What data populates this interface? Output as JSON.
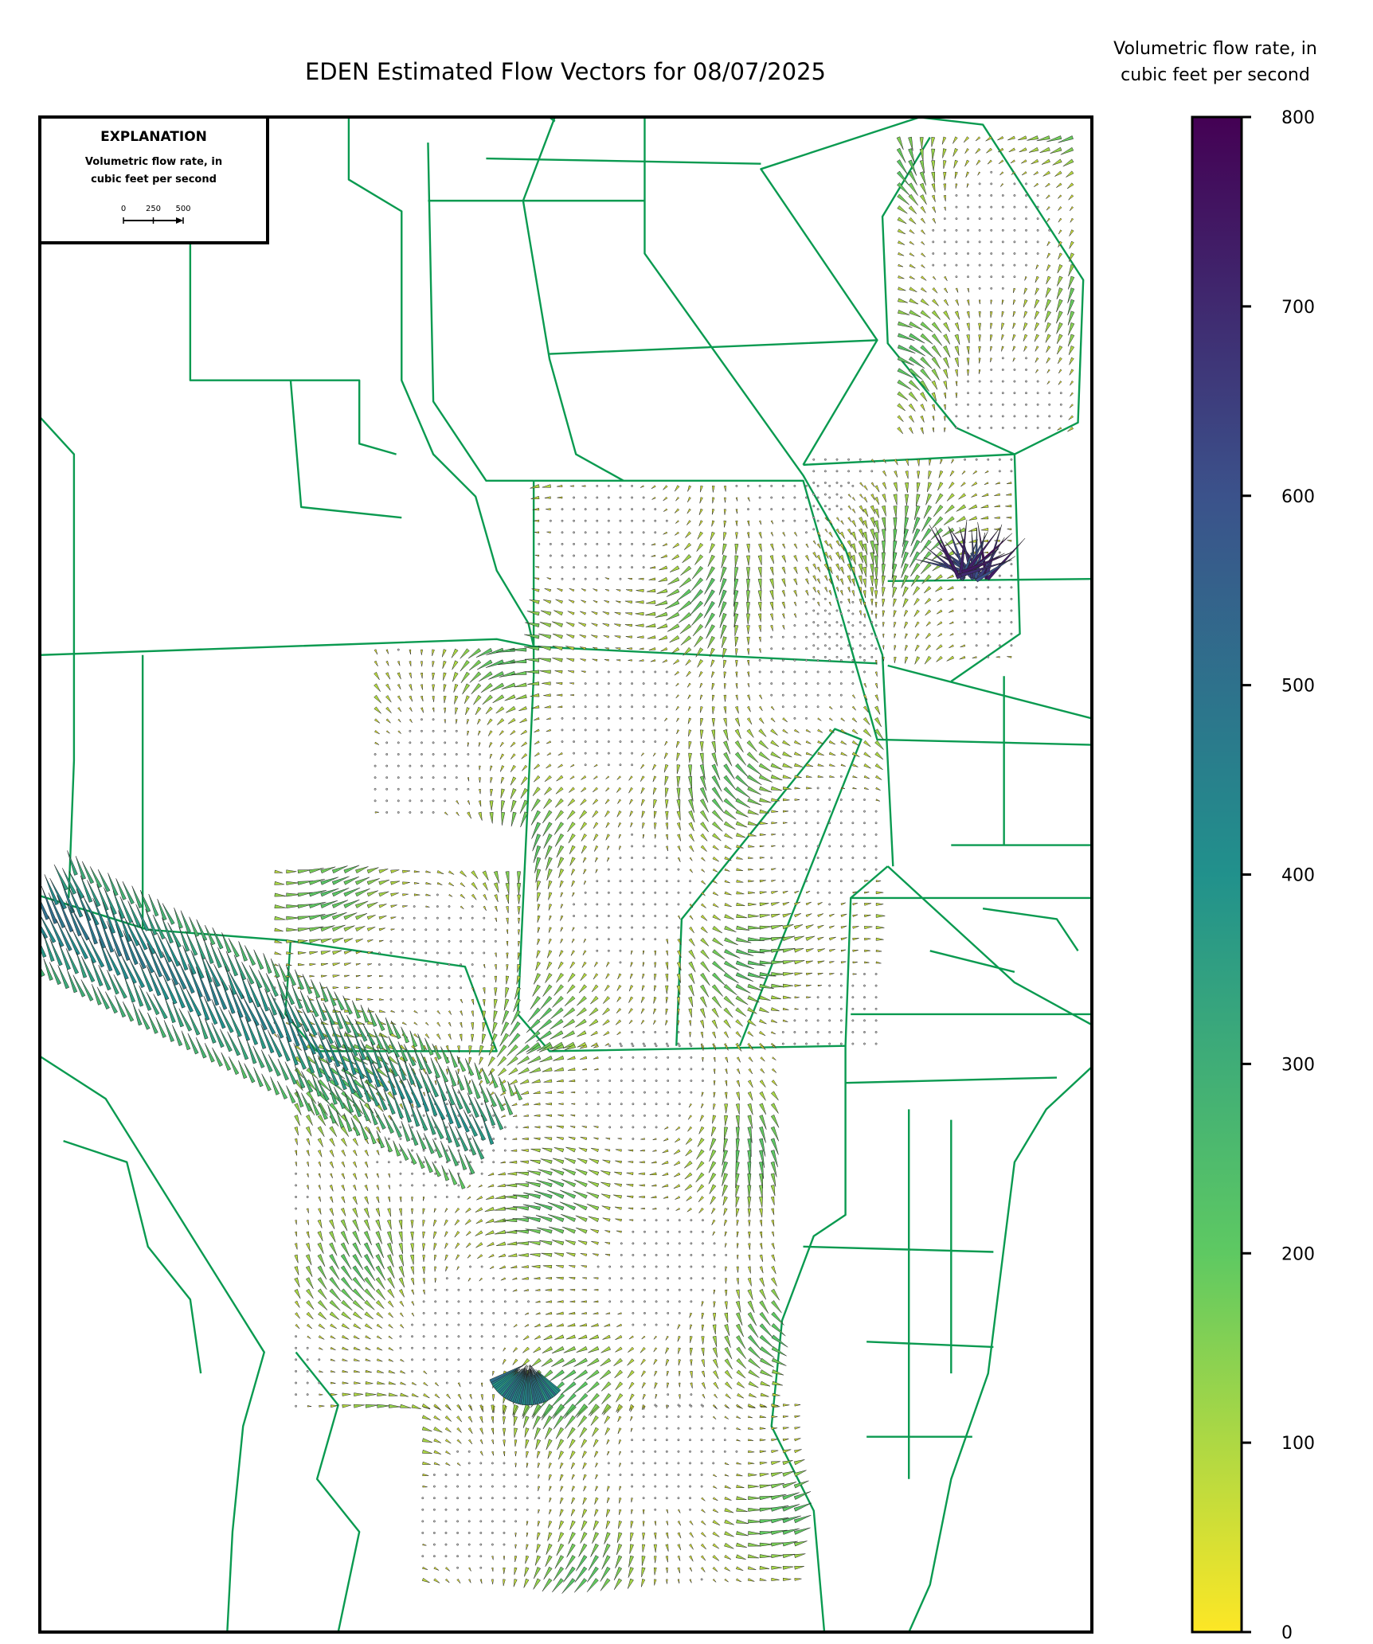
{
  "title": "EDEN Estimated Flow Vectors for 08/07/2025",
  "colorbar": {
    "title_lines": [
      "Volumetric flow rate, in",
      "cubic feet per second"
    ],
    "lim": [
      0,
      800
    ],
    "ticks": [
      0,
      100,
      200,
      300,
      400,
      500,
      600,
      700,
      800
    ],
    "colors": [
      "#fde725",
      "#5ec962",
      "#21918c",
      "#3b528b",
      "#440154"
    ]
  },
  "explanation": {
    "title": "EXPLANATION",
    "subtitle_lines": [
      "Volumetric flow rate, in",
      "cubic feet per second"
    ],
    "scale_ticks": [
      0,
      250,
      500
    ]
  }
}
